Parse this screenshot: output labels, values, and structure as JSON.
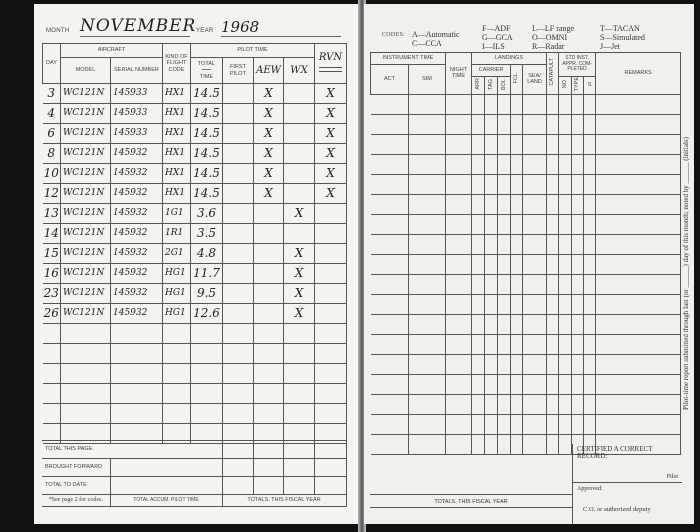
{
  "left": {
    "month_label": "MONTH",
    "month": "NOVEMBER",
    "year_label": "YEAR",
    "year": "1968",
    "headers": {
      "day": "DAY",
      "aircraft": "AIRCRAFT",
      "model": "MODEL",
      "serial": "SERIAL NUMBER",
      "kind": "KIND OF FLIGHT CODE",
      "pilot_time": "PILOT TIME",
      "total": "TOTAL",
      "time": "TIME",
      "first_pilot": "FIRST PILOT",
      "col_a": "AEW",
      "col_b": "WX",
      "col_c": "RVN"
    },
    "rows": [
      {
        "day": "3",
        "model": "WC121N",
        "serial": "145933",
        "code": "HX1",
        "total": "14.5",
        "a": "X",
        "b": "",
        "c": "X"
      },
      {
        "day": "4",
        "model": "WC121N",
        "serial": "145933",
        "code": "HX1",
        "total": "14.5",
        "a": "X",
        "b": "",
        "c": "X"
      },
      {
        "day": "6",
        "model": "WC121N",
        "serial": "145933",
        "code": "HX1",
        "total": "14.5",
        "a": "X",
        "b": "",
        "c": "X"
      },
      {
        "day": "8",
        "model": "WC121N",
        "serial": "145932",
        "code": "HX1",
        "total": "14.5",
        "a": "X",
        "b": "",
        "c": "X"
      },
      {
        "day": "10",
        "model": "WC121N",
        "serial": "145932",
        "code": "HX1",
        "total": "14.5",
        "a": "X",
        "b": "",
        "c": "X"
      },
      {
        "day": "12",
        "model": "WC121N",
        "serial": "145932",
        "code": "HX1",
        "total": "14.5",
        "a": "X",
        "b": "",
        "c": "X"
      },
      {
        "day": "13",
        "model": "WC121N",
        "serial": "145932",
        "code": "1G1",
        "total": "3.6",
        "a": "",
        "b": "X",
        "c": ""
      },
      {
        "day": "14",
        "model": "WC121N",
        "serial": "145932",
        "code": "1R1",
        "total": "3.5",
        "a": "",
        "b": "",
        "c": ""
      },
      {
        "day": "15",
        "model": "WC121N",
        "serial": "145932",
        "code": "2G1",
        "total": "4.8",
        "a": "",
        "b": "X",
        "c": ""
      },
      {
        "day": "16",
        "model": "WC121N",
        "serial": "145932",
        "code": "HG1",
        "total": "11.7",
        "a": "",
        "b": "X",
        "c": ""
      },
      {
        "day": "23",
        "model": "WC121N",
        "serial": "145932",
        "code": "HG1",
        "total": "9.5",
        "a": "",
        "b": "X",
        "c": ""
      },
      {
        "day": "26",
        "model": "WC121N",
        "serial": "145932",
        "code": "HG1",
        "total": "12.6",
        "a": "",
        "b": "X",
        "c": ""
      }
    ],
    "total_this_page": "TOTAL THIS PAGE",
    "brought_forward": "BROUGHT FORWARD",
    "total_to_date": "TOTAL TO DATE",
    "footnote": "*See page 2 for codes.",
    "total_accum": "TOTAL ACCUM. PILOT TIME",
    "fiscal": "TOTALS, THIS FISCAL YEAR"
  },
  "right": {
    "codes_label": "CODES:",
    "codes": [
      "A—Automatic",
      "C—CCA",
      "F—ADF",
      "G—GCA",
      "I—ILS",
      "L—LF range",
      "O—OMNI",
      "R—Radar",
      "T—TACAN",
      "S—Simulated",
      "J—Jet"
    ],
    "headers": {
      "instrument": "INSTRUMENT TIME",
      "act": "ACT",
      "sim": "SIM",
      "night": "NIGHT TIME",
      "landings": "LANDINGS",
      "carrier": "CARRIER",
      "arr": "ARR",
      "tag": "TAG",
      "bol": "BOL",
      "fcl": "FCL",
      "sea_land": "SEA/ LAND",
      "catapult": "CATAPULT",
      "std": "STD INST. APPR. COM- PLETED",
      "no": "NO",
      "type": "TYPE",
      "s": "S",
      "remarks": "REMARKS"
    },
    "fiscal": "TOTALS, THIS FISCAL YEAR",
    "certified": "CERTIFIED A CORRECT RECORD:",
    "pilot": "Pilot",
    "approved": "Approved:",
    "co": "C.O. or authorized deputy",
    "side_note": "Pilot-time report submitted through last (or ______) day of this month; noted by ______ (initials)"
  }
}
